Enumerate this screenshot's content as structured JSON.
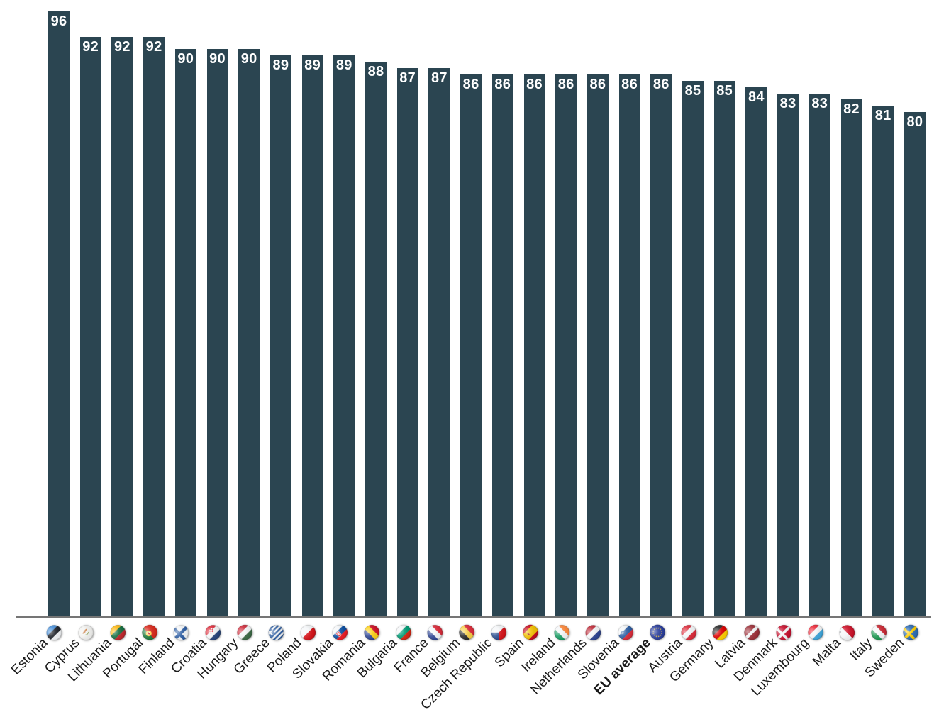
{
  "chart_data": {
    "type": "bar",
    "title": "",
    "xlabel": "",
    "ylabel": "",
    "categories": [
      "Estonia",
      "Cyprus",
      "Lithuania",
      "Portugal",
      "Finland",
      "Croatia",
      "Hungary",
      "Greece",
      "Poland",
      "Slovakia",
      "Romania",
      "Bulgaria",
      "France",
      "Belgium",
      "Czech Republic",
      "Spain",
      "Ireland",
      "Netherlands",
      "Slovenia",
      "EU average",
      "Austria",
      "Germany",
      "Latvia",
      "Denmark",
      "Luxembourg",
      "Malta",
      "Italy",
      "Sweden"
    ],
    "values": [
      96,
      92,
      92,
      92,
      90,
      90,
      90,
      89,
      89,
      89,
      88,
      87,
      87,
      86,
      86,
      86,
      86,
      86,
      86,
      86,
      85,
      85,
      84,
      83,
      83,
      82,
      81,
      80
    ],
    "flags": [
      "estonia-flag-icon",
      "cyprus-flag-icon",
      "lithuania-flag-icon",
      "portugal-flag-icon",
      "finland-flag-icon",
      "croatia-flag-icon",
      "hungary-flag-icon",
      "greece-flag-icon",
      "poland-flag-icon",
      "slovakia-flag-icon",
      "romania-flag-icon",
      "bulgaria-flag-icon",
      "france-flag-icon",
      "belgium-flag-icon",
      "czech-republic-flag-icon",
      "spain-flag-icon",
      "ireland-flag-icon",
      "netherlands-flag-icon",
      "slovenia-flag-icon",
      "eu-flag-icon",
      "austria-flag-icon",
      "germany-flag-icon",
      "latvia-flag-icon",
      "denmark-flag-icon",
      "luxembourg-flag-icon",
      "malta-flag-icon",
      "italy-flag-icon",
      "sweden-flag-icon"
    ],
    "emphasized_category": "EU average",
    "value_labels_position": "inside-top",
    "tick_label_rotation_deg": -45,
    "ylim": [
      0,
      96
    ],
    "grid": false,
    "legend": "none",
    "bar_color": "#2B4551",
    "value_label_color": "#FFFFFF",
    "tick_label_color": "#1B1B1B",
    "axis_line_color": "#757575",
    "background_color": "#FFFFFF"
  }
}
